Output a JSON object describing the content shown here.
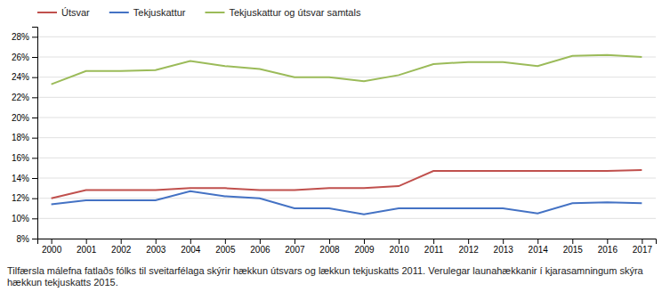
{
  "chart_data": {
    "type": "line",
    "x": [
      2000,
      2001,
      2002,
      2003,
      2004,
      2005,
      2006,
      2007,
      2008,
      2009,
      2010,
      2011,
      2012,
      2013,
      2014,
      2015,
      2016,
      2017
    ],
    "series": [
      {
        "name": "Útsvar",
        "color": "#c0504d",
        "values": [
          0.12,
          0.128,
          0.128,
          0.128,
          0.13,
          0.13,
          0.128,
          0.128,
          0.13,
          0.13,
          0.132,
          0.147,
          0.147,
          0.147,
          0.147,
          0.147,
          0.147,
          0.148
        ]
      },
      {
        "name": "Tekjuskattur",
        "color": "#4472c4",
        "values": [
          0.114,
          0.118,
          0.118,
          0.118,
          0.127,
          0.122,
          0.12,
          0.11,
          0.11,
          0.104,
          0.11,
          0.11,
          0.11,
          0.11,
          0.105,
          0.115,
          0.116,
          0.115
        ]
      },
      {
        "name": "Tekjuskattur og útsvar samtals",
        "color": "#9bbb59",
        "values": [
          0.233,
          0.246,
          0.246,
          0.247,
          0.256,
          0.251,
          0.248,
          0.24,
          0.24,
          0.236,
          0.242,
          0.253,
          0.255,
          0.255,
          0.251,
          0.261,
          0.262,
          0.26
        ]
      }
    ],
    "xlim": [
      1999.6,
      2017.4
    ],
    "xticks": [
      2000,
      2001,
      2002,
      2003,
      2004,
      2005,
      2006,
      2007,
      2008,
      2009,
      2010,
      2011,
      2012,
      2013,
      2014,
      2015,
      2016,
      2017
    ],
    "ylim": [
      0.08,
      0.29
    ],
    "yticks": [
      {
        "value": 0.08,
        "label": "8%"
      },
      {
        "value": 0.1,
        "label": "10%"
      },
      {
        "value": 0.12,
        "label": "12%"
      },
      {
        "value": 0.14,
        "label": "14%"
      },
      {
        "value": 0.16,
        "label": "16%"
      },
      {
        "value": 0.18,
        "label": "18%"
      },
      {
        "value": 0.2,
        "label": "20%"
      },
      {
        "value": 0.22,
        "label": "22%"
      },
      {
        "value": 0.24,
        "label": "24%"
      },
      {
        "value": 0.26,
        "label": "26%"
      },
      {
        "value": 0.28,
        "label": "28%"
      }
    ],
    "grid": true,
    "legend": "upper left",
    "annotations": [
      "Tilfærsla málefna fatlaðs fólks til sveitarfélaga skýrir hækkun útsvars og lækkun tekjuskatts 2011. Verulegar launahækkanir í kjarasamningum skýra",
      "hækkun tekjuskatts 2015."
    ]
  }
}
